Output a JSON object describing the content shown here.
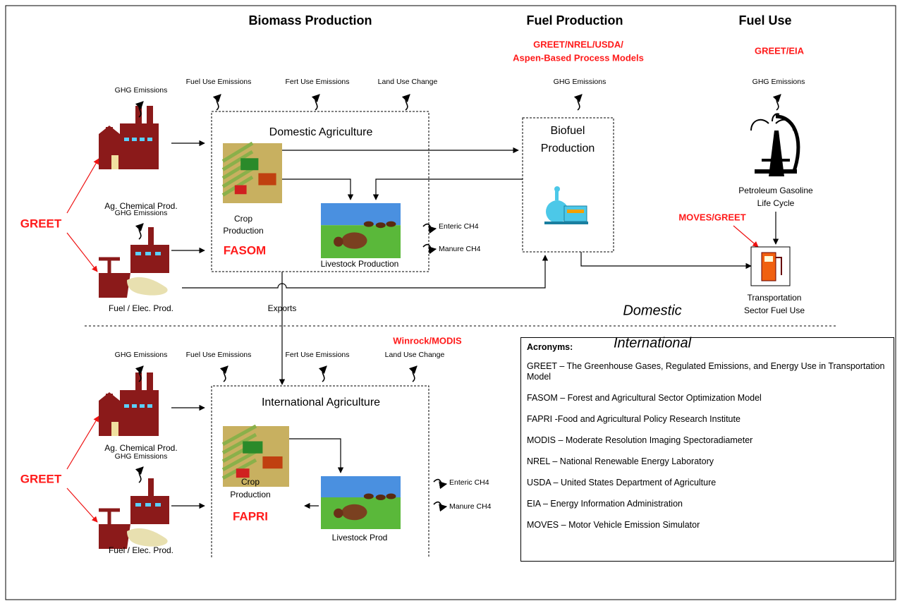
{
  "stages": {
    "biomass": "Biomass Production",
    "fuel_production": "Fuel Production",
    "fuel_use": "Fuel Use"
  },
  "models": {
    "fuel_production": [
      "GREET/NREL/USDA/",
      "Aspen-Based Process Models"
    ],
    "fuel_use": "GREET/EIA",
    "transport": "MOVES/GREET",
    "international_land": "Winrock/MODIS"
  },
  "domestic": {
    "region": "Domestic",
    "greet": "GREET",
    "ag_chem": {
      "emissions": "GHG Emissions",
      "label": "Ag. Chemical Prod."
    },
    "fuel_elec": {
      "emissions": "GHG Emissions",
      "label": "Fuel / Elec. Prod."
    },
    "agriculture": {
      "title": "Domestic Agriculture",
      "emissions": [
        "Fuel Use Emissions",
        "Fert Use Emissions",
        "Land Use Change"
      ],
      "crop": [
        "Crop",
        "Production"
      ],
      "model": "FASOM",
      "livestock": "Livestock Production",
      "outputs": [
        "Enteric CH4",
        "Manure CH4"
      ]
    },
    "exports": "Exports",
    "biofuel": {
      "emissions": "GHG Emissions",
      "label": [
        "Biofuel",
        "Production"
      ]
    },
    "petroleum": {
      "emissions": "GHG Emissions",
      "label": [
        "Petroleum Gasoline",
        "Life Cycle"
      ]
    },
    "transport": [
      "Transportation",
      "Sector Fuel Use"
    ]
  },
  "international": {
    "region": "International",
    "greet": "GREET",
    "ag_chem": {
      "emissions": "GHG Emissions",
      "label": "Ag. Chemical Prod."
    },
    "fuel_elec": {
      "emissions": "GHG Emissions",
      "label": "Fuel / Elec. Prod."
    },
    "agriculture": {
      "title": "International Agriculture",
      "emissions": [
        "Fuel Use Emissions",
        "Fert Use Emissions",
        "Land Use Change"
      ],
      "crop": [
        "Crop",
        "Production"
      ],
      "model": "FAPRI",
      "livestock": "Livestock Prod",
      "outputs": [
        "Enteric CH4",
        "Manure CH4"
      ]
    }
  },
  "acronyms": {
    "title": "Acronyms:",
    "items": [
      {
        "term": "GREET",
        "definition": "– The Greenhouse Gases, Regulated Emissions, and Energy Use in Transportation Model"
      },
      {
        "term": "FASOM",
        "definition": "– Forest and Agricultural Sector Optimization Model"
      },
      {
        "term": "FAPRI",
        "definition": "-Food and Agricultural Policy Research Institute"
      },
      {
        "term": "MODIS",
        "definition": "– Moderate Resolution Imaging Spectoradiameter"
      },
      {
        "term": "NREL",
        "definition": "– National Renewable Energy Laboratory"
      },
      {
        "term": "USDA",
        "definition": "– United States Department of Agriculture"
      },
      {
        "term": "EIA",
        "definition": "– Energy Information Administration"
      },
      {
        "term": "MOVES",
        "definition": "– Motor Vehicle Emission Simulator"
      }
    ]
  }
}
